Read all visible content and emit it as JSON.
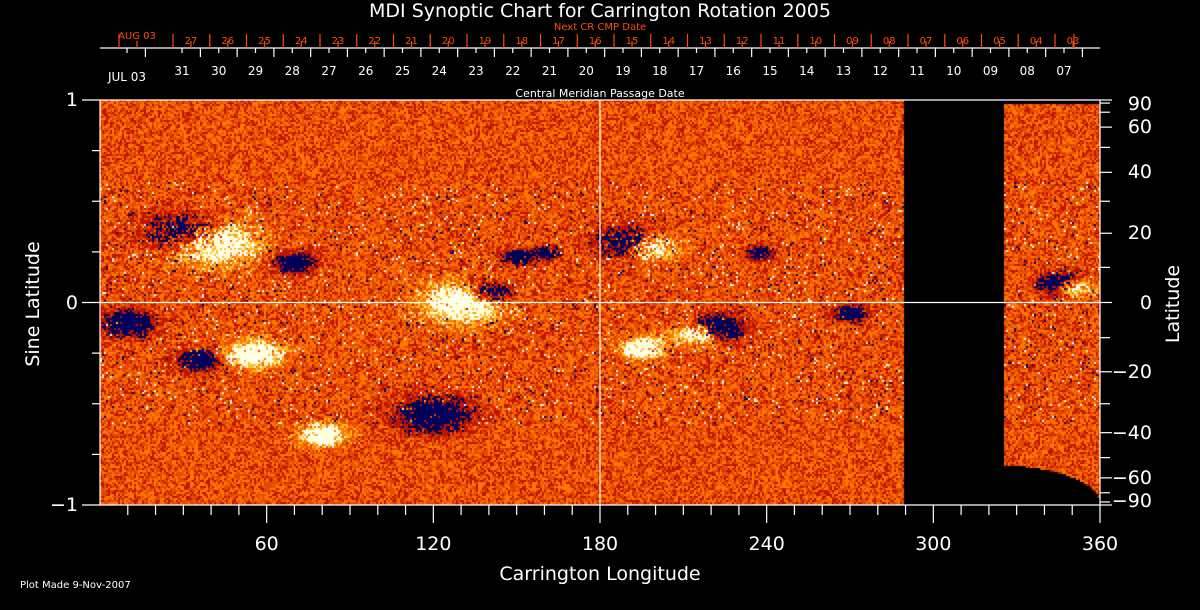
{
  "title": "MDI Synoptic Chart for Carrington Rotation 2005",
  "top_axis": {
    "next_cr_label": "Next CR CMP Date",
    "next_cr_dates": [
      "AUG 03",
      "27",
      "26",
      "25",
      "24",
      "23",
      "22",
      "21",
      "20",
      "19",
      "18",
      "17",
      "16",
      "15",
      "14",
      "13",
      "12",
      "11",
      "10",
      "09",
      "08",
      "07",
      "06",
      "05",
      "04",
      "03"
    ],
    "cmp_dates": [
      "JUL 03",
      "31",
      "30",
      "29",
      "28",
      "27",
      "26",
      "25",
      "24",
      "23",
      "22",
      "21",
      "20",
      "19",
      "18",
      "17",
      "16",
      "15",
      "14",
      "13",
      "12",
      "11",
      "10",
      "09",
      "08",
      "07"
    ],
    "cmp_label": "Central Meridian Passage Date"
  },
  "footer": {
    "plot_made": "Plot Made  9-Nov-2007"
  },
  "colors": {
    "text": "#ffffff",
    "next_cr": "#ff4a10",
    "background": "#000000"
  },
  "chart_data": {
    "type": "heatmap",
    "title": "MDI Synoptic Chart for Carrington Rotation 2005",
    "xlabel": "Carrington Longitude",
    "ylabel": "Sine Latitude",
    "ylabel_right": "Latitude",
    "xlim": [
      0,
      360
    ],
    "ylim": [
      -1,
      1
    ],
    "x_ticks": [
      "60",
      "120",
      "180",
      "240",
      "300",
      "360"
    ],
    "y_ticks": [
      "1",
      "0",
      "−1"
    ],
    "y_ticks_right": [
      "90",
      "60",
      "40",
      "20",
      "0",
      "−20",
      "−40",
      "−60",
      "−90"
    ],
    "missing_data_longitude_range": [
      289,
      325
    ],
    "colormap": [
      "#000060",
      "#c01000",
      "#ff5000",
      "#ffa000",
      "#ffff80",
      "#ffffff"
    ]
  }
}
